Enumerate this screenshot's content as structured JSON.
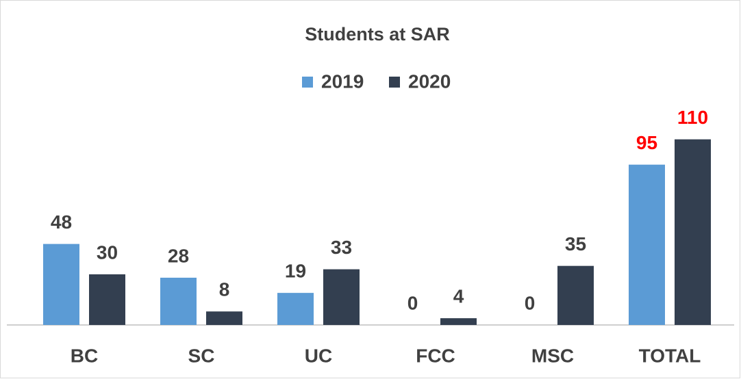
{
  "chart_data": {
    "type": "bar",
    "title": "Students at SAR",
    "categories": [
      "BC",
      "SC",
      "UC",
      "FCC",
      "MSC",
      "TOTAL"
    ],
    "series": [
      {
        "name": "2019",
        "color": "#5b9bd5",
        "values": [
          48,
          28,
          19,
          0,
          0,
          95
        ],
        "label_colors": [
          "#404040",
          "#404040",
          "#404040",
          "#404040",
          "#404040",
          "#ff0000"
        ]
      },
      {
        "name": "2020",
        "color": "#333f50",
        "values": [
          30,
          8,
          33,
          4,
          35,
          110
        ],
        "label_colors": [
          "#404040",
          "#404040",
          "#404040",
          "#404040",
          "#404040",
          "#ff0000"
        ]
      }
    ],
    "ylim": [
      0,
      120
    ],
    "grid": false,
    "legend": "top"
  }
}
